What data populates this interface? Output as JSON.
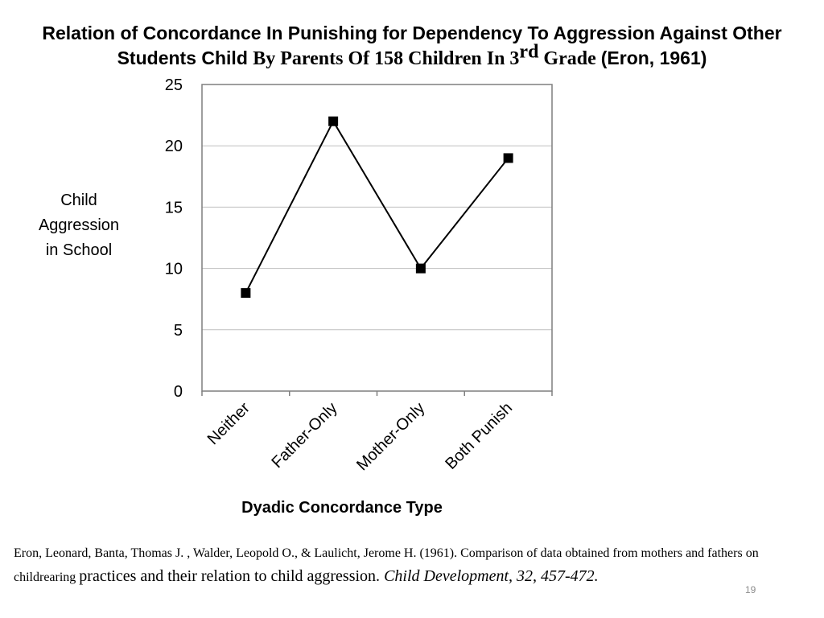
{
  "slide": {
    "title_line1": "Relation of Concordance In Punishing for Dependency To Aggression Against Other",
    "title_line2_a": "Students Child ",
    "title_line2_b": "By Parents Of 158 Children In 3",
    "title_line2_sup": "rd",
    "title_line2_c": " Grade ",
    "title_line2_d": "(Eron, 1961)",
    "citation_part1": "Eron, Leonard, Banta, Thomas J. , Walder, Leopold O., & Laulicht, Jerome H. (1961). Comparison of data obtained from mothers and fathers on childrearing ",
    "citation_part2": "practices and their relation to child aggression. ",
    "citation_source": "Child Development, 32, 457-472.",
    "page_number": "19"
  },
  "chart_data": {
    "type": "line",
    "title": "Relation of Concordance In Punishing for Dependency To Aggression Against Other Students Child By Parents Of 158 Children In 3rd Grade (Eron, 1961)",
    "xlabel": "Dyadic Concordance Type",
    "ylabel_lines": [
      "Child",
      "Aggression",
      "in School"
    ],
    "categories": [
      "Neither",
      "Father-Only",
      "Mother-Only",
      "Both Punish"
    ],
    "series": [
      {
        "values": [
          8,
          22,
          10,
          19
        ]
      }
    ],
    "ylim": [
      0,
      25
    ],
    "yticks": [
      "0",
      "5",
      "10",
      "15",
      "20",
      "25"
    ],
    "grid": true,
    "legend": "none",
    "marker": "square",
    "line_color": "#000000",
    "grid_color": "#bfbfbf",
    "frame_color": "#7f7f7f"
  }
}
